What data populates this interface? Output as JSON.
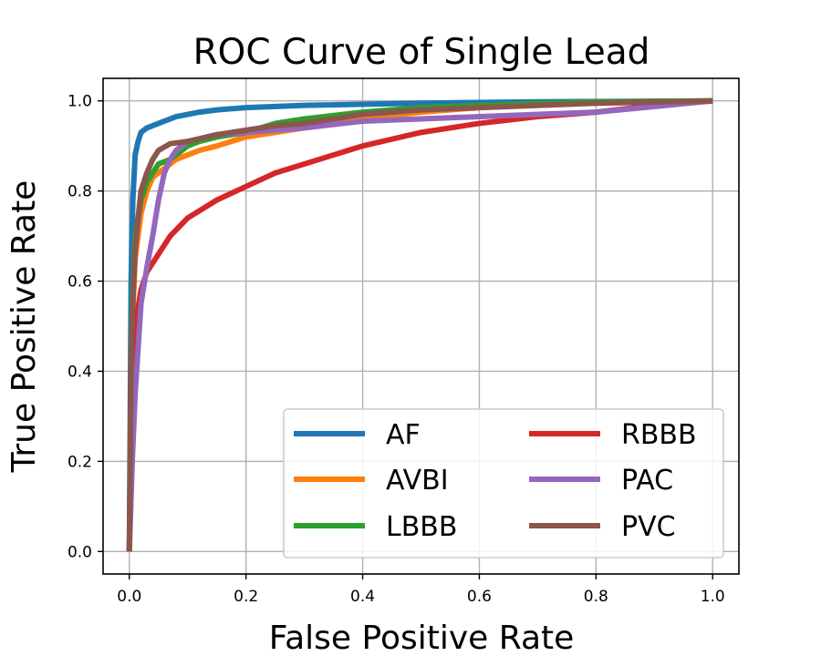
{
  "chart_data": {
    "type": "line",
    "title": "ROC Curve of Single Lead",
    "xlabel": "False Positive Rate",
    "ylabel": "True Positive Rate",
    "xlim": [
      -0.045,
      1.045
    ],
    "ylim": [
      -0.05,
      1.05
    ],
    "xticks": [
      0.0,
      0.2,
      0.4,
      0.6,
      0.8,
      1.0
    ],
    "xtick_labels": [
      "0.0",
      "0.2",
      "0.4",
      "0.6",
      "0.8",
      "1.0"
    ],
    "yticks": [
      0.0,
      0.2,
      0.4,
      0.6,
      0.8,
      1.0
    ],
    "ytick_labels": [
      "0.0",
      "0.2",
      "0.4",
      "0.6",
      "0.8",
      "1.0"
    ],
    "grid": true,
    "legend": {
      "position": "lower-right",
      "columns": 2
    },
    "series": [
      {
        "name": "AF",
        "color": "#1f77b4",
        "x": [
          0,
          0.003,
          0.006,
          0.01,
          0.015,
          0.02,
          0.03,
          0.04,
          0.05,
          0.06,
          0.08,
          0.1,
          0.12,
          0.15,
          0.2,
          0.3,
          0.5,
          0.7,
          1.0
        ],
        "y": [
          0,
          0.6,
          0.78,
          0.88,
          0.91,
          0.93,
          0.94,
          0.945,
          0.95,
          0.955,
          0.965,
          0.97,
          0.975,
          0.98,
          0.985,
          0.99,
          0.995,
          0.998,
          1.0
        ]
      },
      {
        "name": "AVBI",
        "color": "#ff7f0e",
        "x": [
          0,
          0.005,
          0.01,
          0.02,
          0.03,
          0.04,
          0.06,
          0.08,
          0.1,
          0.12,
          0.15,
          0.2,
          0.25,
          0.3,
          0.4,
          0.5,
          0.6,
          0.8,
          1.0
        ],
        "y": [
          0,
          0.5,
          0.65,
          0.75,
          0.8,
          0.83,
          0.85,
          0.87,
          0.88,
          0.89,
          0.9,
          0.92,
          0.93,
          0.94,
          0.96,
          0.975,
          0.985,
          0.995,
          1.0
        ]
      },
      {
        "name": "LBBB",
        "color": "#2ca02c",
        "x": [
          0,
          0.005,
          0.01,
          0.02,
          0.03,
          0.04,
          0.05,
          0.07,
          0.1,
          0.12,
          0.15,
          0.2,
          0.25,
          0.3,
          0.4,
          0.5,
          0.6,
          0.8,
          1.0
        ],
        "y": [
          0,
          0.55,
          0.7,
          0.78,
          0.82,
          0.84,
          0.86,
          0.87,
          0.9,
          0.91,
          0.92,
          0.93,
          0.95,
          0.96,
          0.975,
          0.985,
          0.99,
          0.998,
          1.0
        ]
      },
      {
        "name": "RBBB",
        "color": "#d62728",
        "x": [
          0,
          0.005,
          0.01,
          0.02,
          0.03,
          0.05,
          0.07,
          0.1,
          0.15,
          0.2,
          0.25,
          0.3,
          0.35,
          0.4,
          0.45,
          0.5,
          0.6,
          0.7,
          0.8,
          0.9,
          1.0
        ],
        "y": [
          0,
          0.35,
          0.5,
          0.58,
          0.62,
          0.66,
          0.7,
          0.74,
          0.78,
          0.81,
          0.84,
          0.86,
          0.88,
          0.9,
          0.915,
          0.93,
          0.95,
          0.965,
          0.975,
          0.99,
          1.0
        ]
      },
      {
        "name": "PAC",
        "color": "#9467bd",
        "x": [
          0,
          0.005,
          0.01,
          0.015,
          0.02,
          0.03,
          0.04,
          0.05,
          0.06,
          0.07,
          0.08,
          0.1,
          0.15,
          0.2,
          0.3,
          0.4,
          0.5,
          0.6,
          0.8,
          1.0
        ],
        "y": [
          0,
          0.2,
          0.35,
          0.45,
          0.55,
          0.63,
          0.7,
          0.78,
          0.84,
          0.87,
          0.89,
          0.91,
          0.925,
          0.93,
          0.94,
          0.955,
          0.96,
          0.965,
          0.975,
          1.0
        ]
      },
      {
        "name": "PVC",
        "color": "#8c564b",
        "x": [
          0,
          0.003,
          0.006,
          0.01,
          0.015,
          0.02,
          0.03,
          0.04,
          0.05,
          0.07,
          0.1,
          0.15,
          0.2,
          0.25,
          0.3,
          0.35,
          0.4,
          0.5,
          0.6,
          0.8,
          1.0
        ],
        "y": [
          0,
          0.4,
          0.55,
          0.67,
          0.74,
          0.8,
          0.84,
          0.87,
          0.89,
          0.905,
          0.91,
          0.925,
          0.935,
          0.945,
          0.95,
          0.96,
          0.97,
          0.98,
          0.985,
          0.995,
          1.0
        ]
      }
    ]
  }
}
